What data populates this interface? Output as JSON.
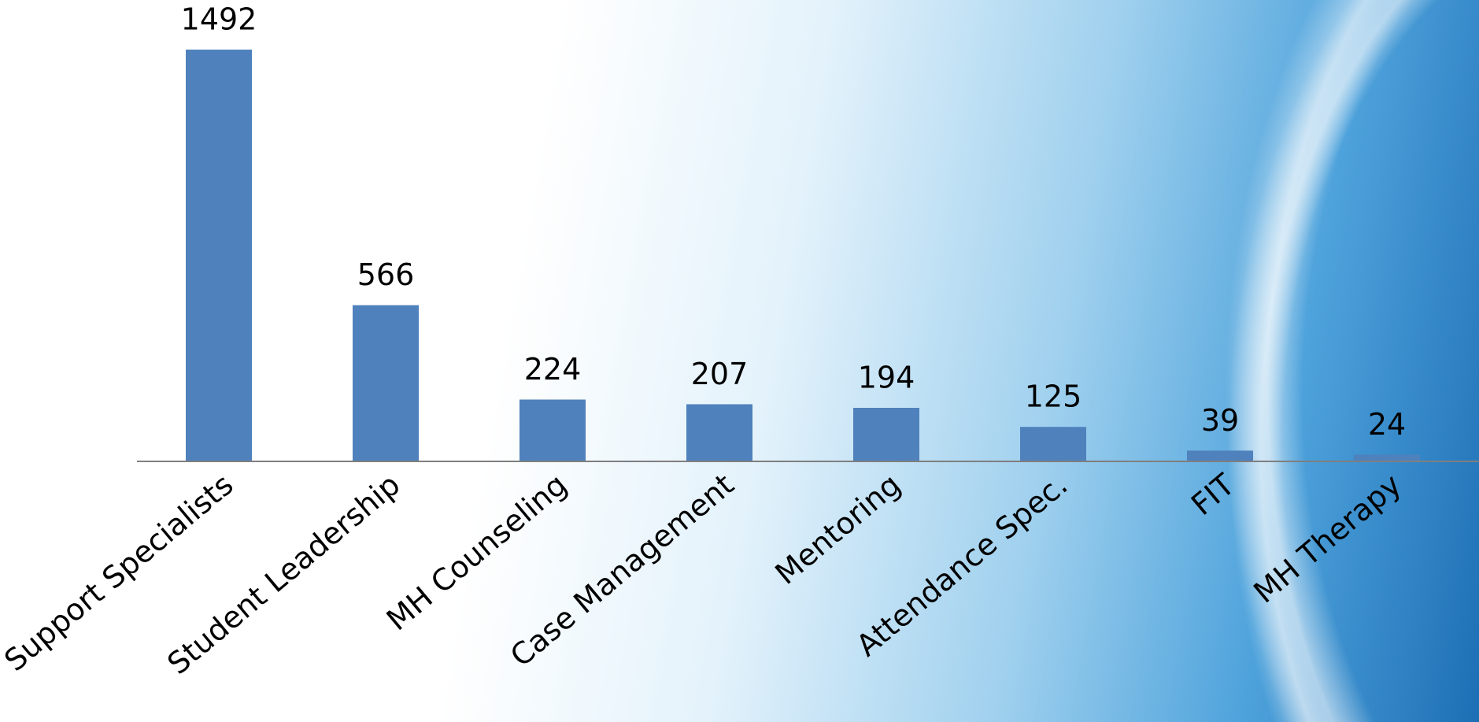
{
  "chart_data": {
    "type": "bar",
    "categories": [
      "Support Specialists",
      "Student Leadership",
      "MH Counseling",
      "Case Management",
      "Mentoring",
      "Attendance Spec.",
      "FIT",
      "MH Therapy"
    ],
    "values": [
      1492,
      566,
      224,
      207,
      194,
      125,
      39,
      24
    ],
    "color": "#4f81bd"
  }
}
